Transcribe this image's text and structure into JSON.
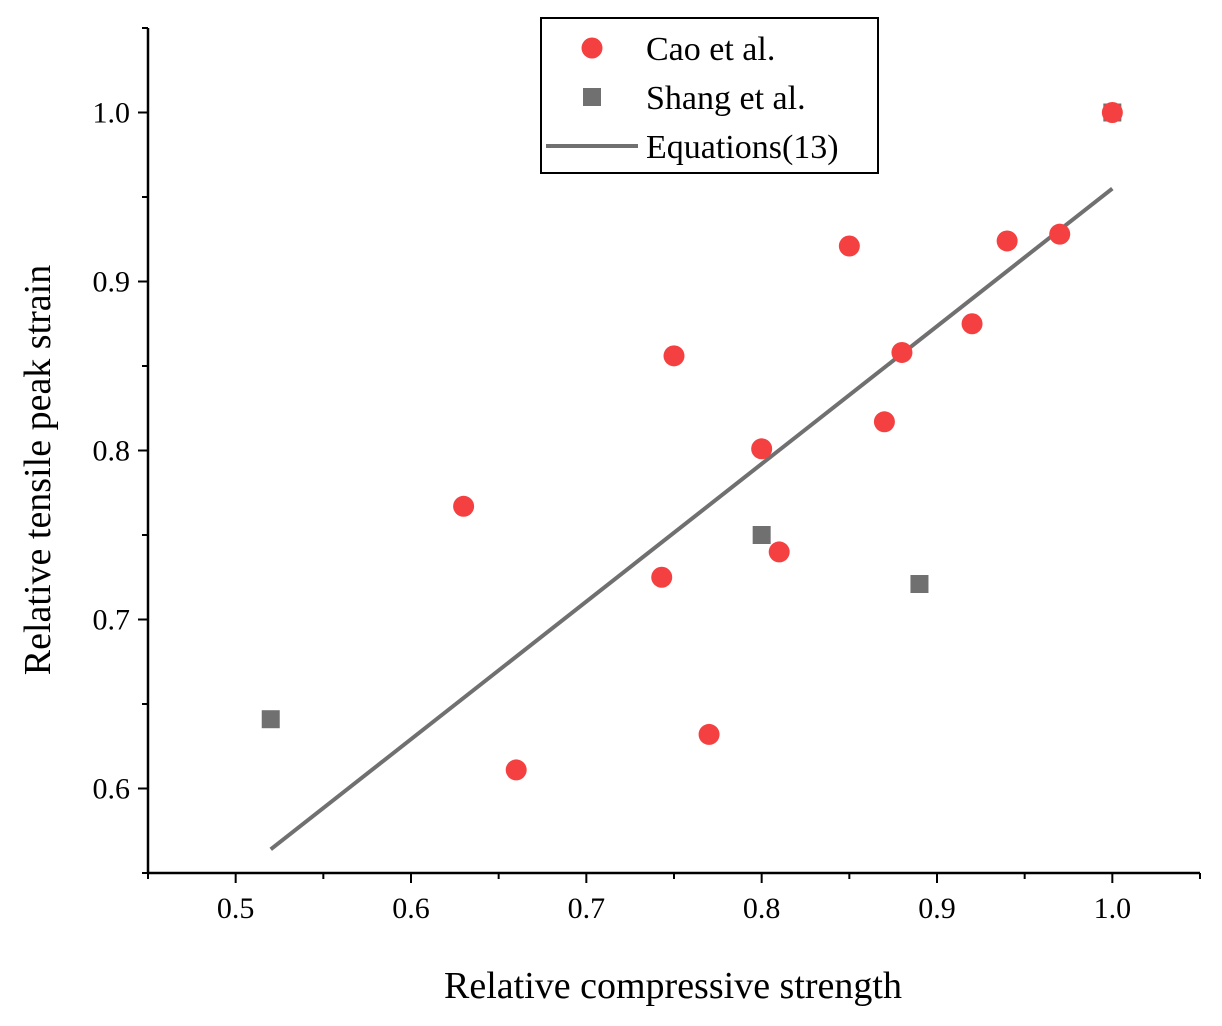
{
  "chart_data": {
    "type": "scatter",
    "xlabel": "Relative compressive strength",
    "ylabel": "Relative tensile peak strain",
    "xlim": [
      0.45,
      1.05
    ],
    "ylim": [
      0.55,
      1.05
    ],
    "xticks": [
      0.5,
      0.6,
      0.7,
      0.8,
      0.9,
      1.0
    ],
    "yticks": [
      0.6,
      0.7,
      0.8,
      0.9,
      1.0
    ],
    "xtick_labels": [
      "0.5",
      "0.6",
      "0.7",
      "0.8",
      "0.9",
      "1.0"
    ],
    "ytick_labels": [
      "0.6",
      "0.7",
      "0.8",
      "0.9",
      "1.0"
    ],
    "legend_position": "top-center",
    "series": [
      {
        "name": "Cao et al.",
        "marker": "circle",
        "color": "#f44040",
        "points": [
          {
            "x": 0.63,
            "y": 0.767
          },
          {
            "x": 0.66,
            "y": 0.611
          },
          {
            "x": 0.743,
            "y": 0.725
          },
          {
            "x": 0.75,
            "y": 0.856
          },
          {
            "x": 0.77,
            "y": 0.632
          },
          {
            "x": 0.8,
            "y": 0.801
          },
          {
            "x": 0.81,
            "y": 0.74
          },
          {
            "x": 0.85,
            "y": 0.921
          },
          {
            "x": 0.87,
            "y": 0.817
          },
          {
            "x": 0.88,
            "y": 0.858
          },
          {
            "x": 0.92,
            "y": 0.875
          },
          {
            "x": 0.94,
            "y": 0.924
          },
          {
            "x": 0.97,
            "y": 0.928
          },
          {
            "x": 1.0,
            "y": 1.0
          }
        ]
      },
      {
        "name": "Shang et al.",
        "marker": "square",
        "color": "#707070",
        "points": [
          {
            "x": 0.52,
            "y": 0.641
          },
          {
            "x": 0.8,
            "y": 0.75
          },
          {
            "x": 0.89,
            "y": 0.721
          },
          {
            "x": 1.0,
            "y": 1.0
          }
        ]
      },
      {
        "name": "Equations(13)",
        "marker": "line",
        "color": "#707070",
        "points": [
          {
            "x": 0.52,
            "y": 0.564
          },
          {
            "x": 1.0,
            "y": 0.955
          }
        ]
      }
    ]
  }
}
